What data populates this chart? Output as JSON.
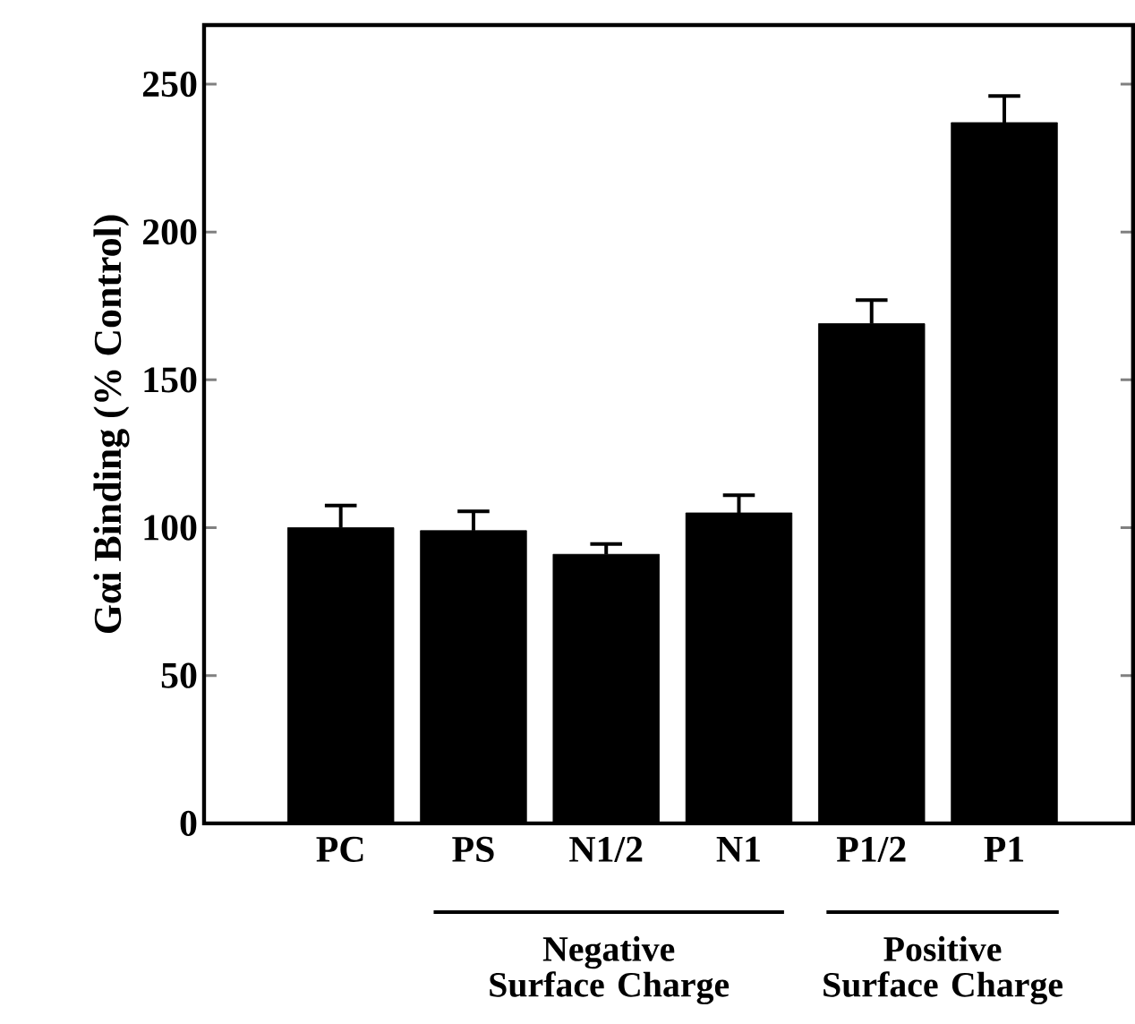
{
  "chart_data": {
    "type": "bar",
    "ylabel": "Gαi Binding (% Control)",
    "categories": [
      "PC",
      "PS",
      "N1/2",
      "N1",
      "P1/2",
      "P1"
    ],
    "values": [
      100,
      99,
      91,
      105,
      169,
      237
    ],
    "errors": [
      [
        100,
        107.5
      ],
      [
        99,
        105.5
      ],
      [
        91,
        94.5
      ],
      [
        105,
        111
      ],
      [
        169,
        177
      ],
      [
        237,
        246
      ]
    ],
    "color": "#000000",
    "ylim": [
      0,
      270
    ],
    "yticks": [
      0,
      50,
      100,
      150,
      200,
      250
    ],
    "annotations": [
      "Negative Surface Charge",
      "Positive Surface Charge"
    ]
  }
}
